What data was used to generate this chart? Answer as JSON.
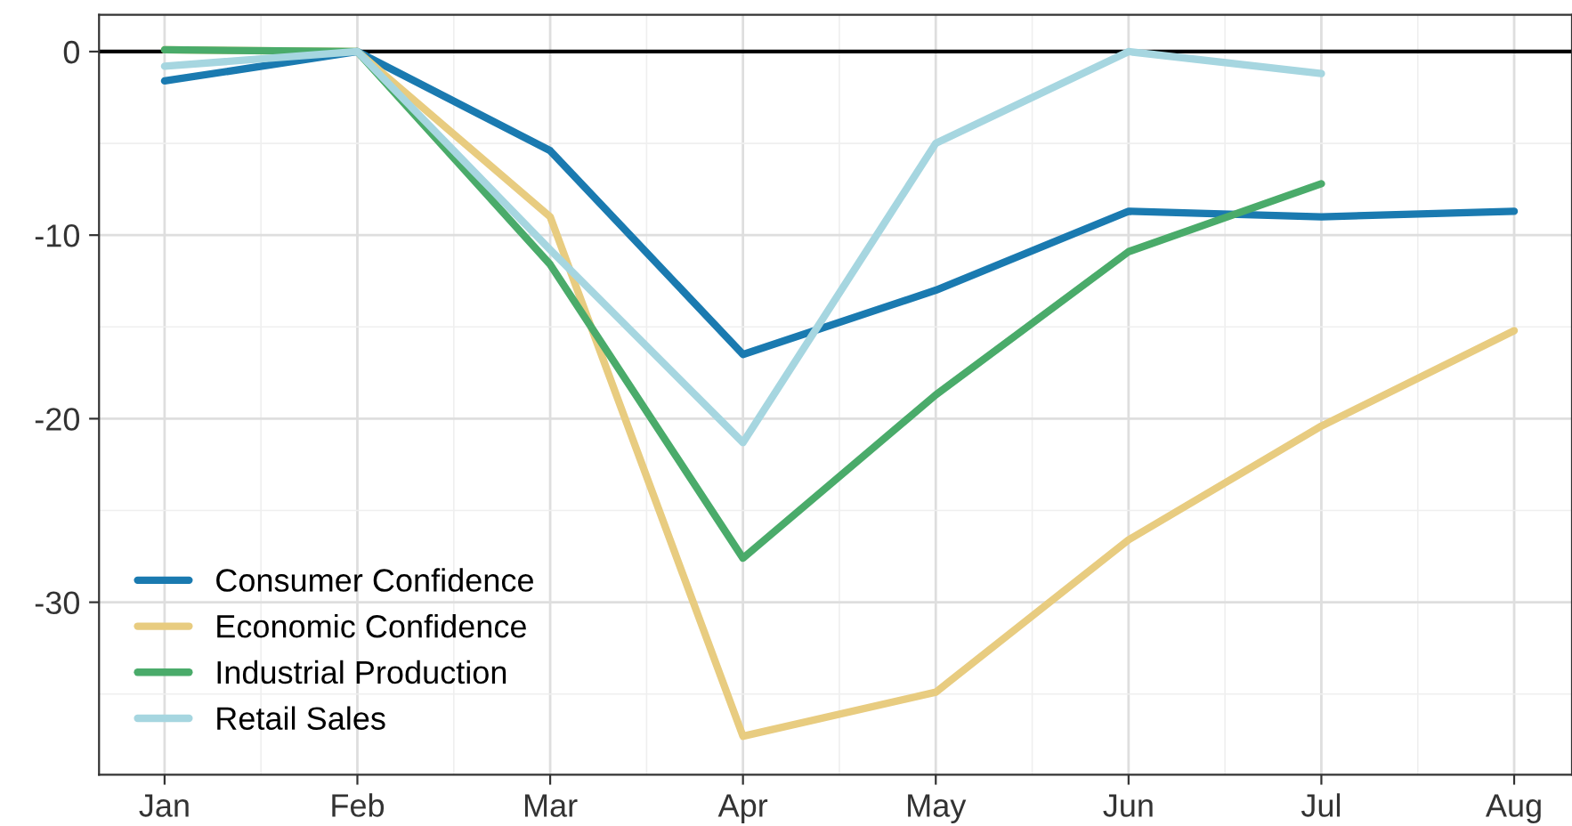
{
  "chart_data": {
    "type": "line",
    "categories": [
      "Jan",
      "Feb",
      "Mar",
      "Apr",
      "May",
      "Jun",
      "Jul",
      "Aug"
    ],
    "series": [
      {
        "name": "Consumer Confidence",
        "color": "#1a7ab0",
        "values": [
          -1.6,
          0,
          -5.4,
          -16.5,
          -13.0,
          -8.7,
          -9.0,
          -8.7
        ]
      },
      {
        "name": "Economic Confidence",
        "color": "#e8cc80",
        "values": [
          0.1,
          0,
          -9.0,
          -37.3,
          -34.9,
          -26.6,
          -20.4,
          -15.2
        ]
      },
      {
        "name": "Industrial Production",
        "color": "#4aab6a",
        "values": [
          0.1,
          0,
          -11.6,
          -27.6,
          -18.7,
          -10.9,
          -7.2,
          null
        ]
      },
      {
        "name": "Retail Sales",
        "color": "#a6d6e0",
        "values": [
          -0.8,
          0,
          -10.8,
          -21.3,
          -5.0,
          0,
          -1.2,
          null
        ]
      }
    ],
    "ylim": [
      -39.4,
      2
    ],
    "yticks": [
      0,
      -10,
      -20,
      -30
    ],
    "grid": true,
    "legend": "bottom left",
    "marker": "none",
    "line_style": "solid",
    "ref_lines": [
      {
        "axis": "y",
        "value": 0,
        "color": "#000000"
      }
    ]
  }
}
